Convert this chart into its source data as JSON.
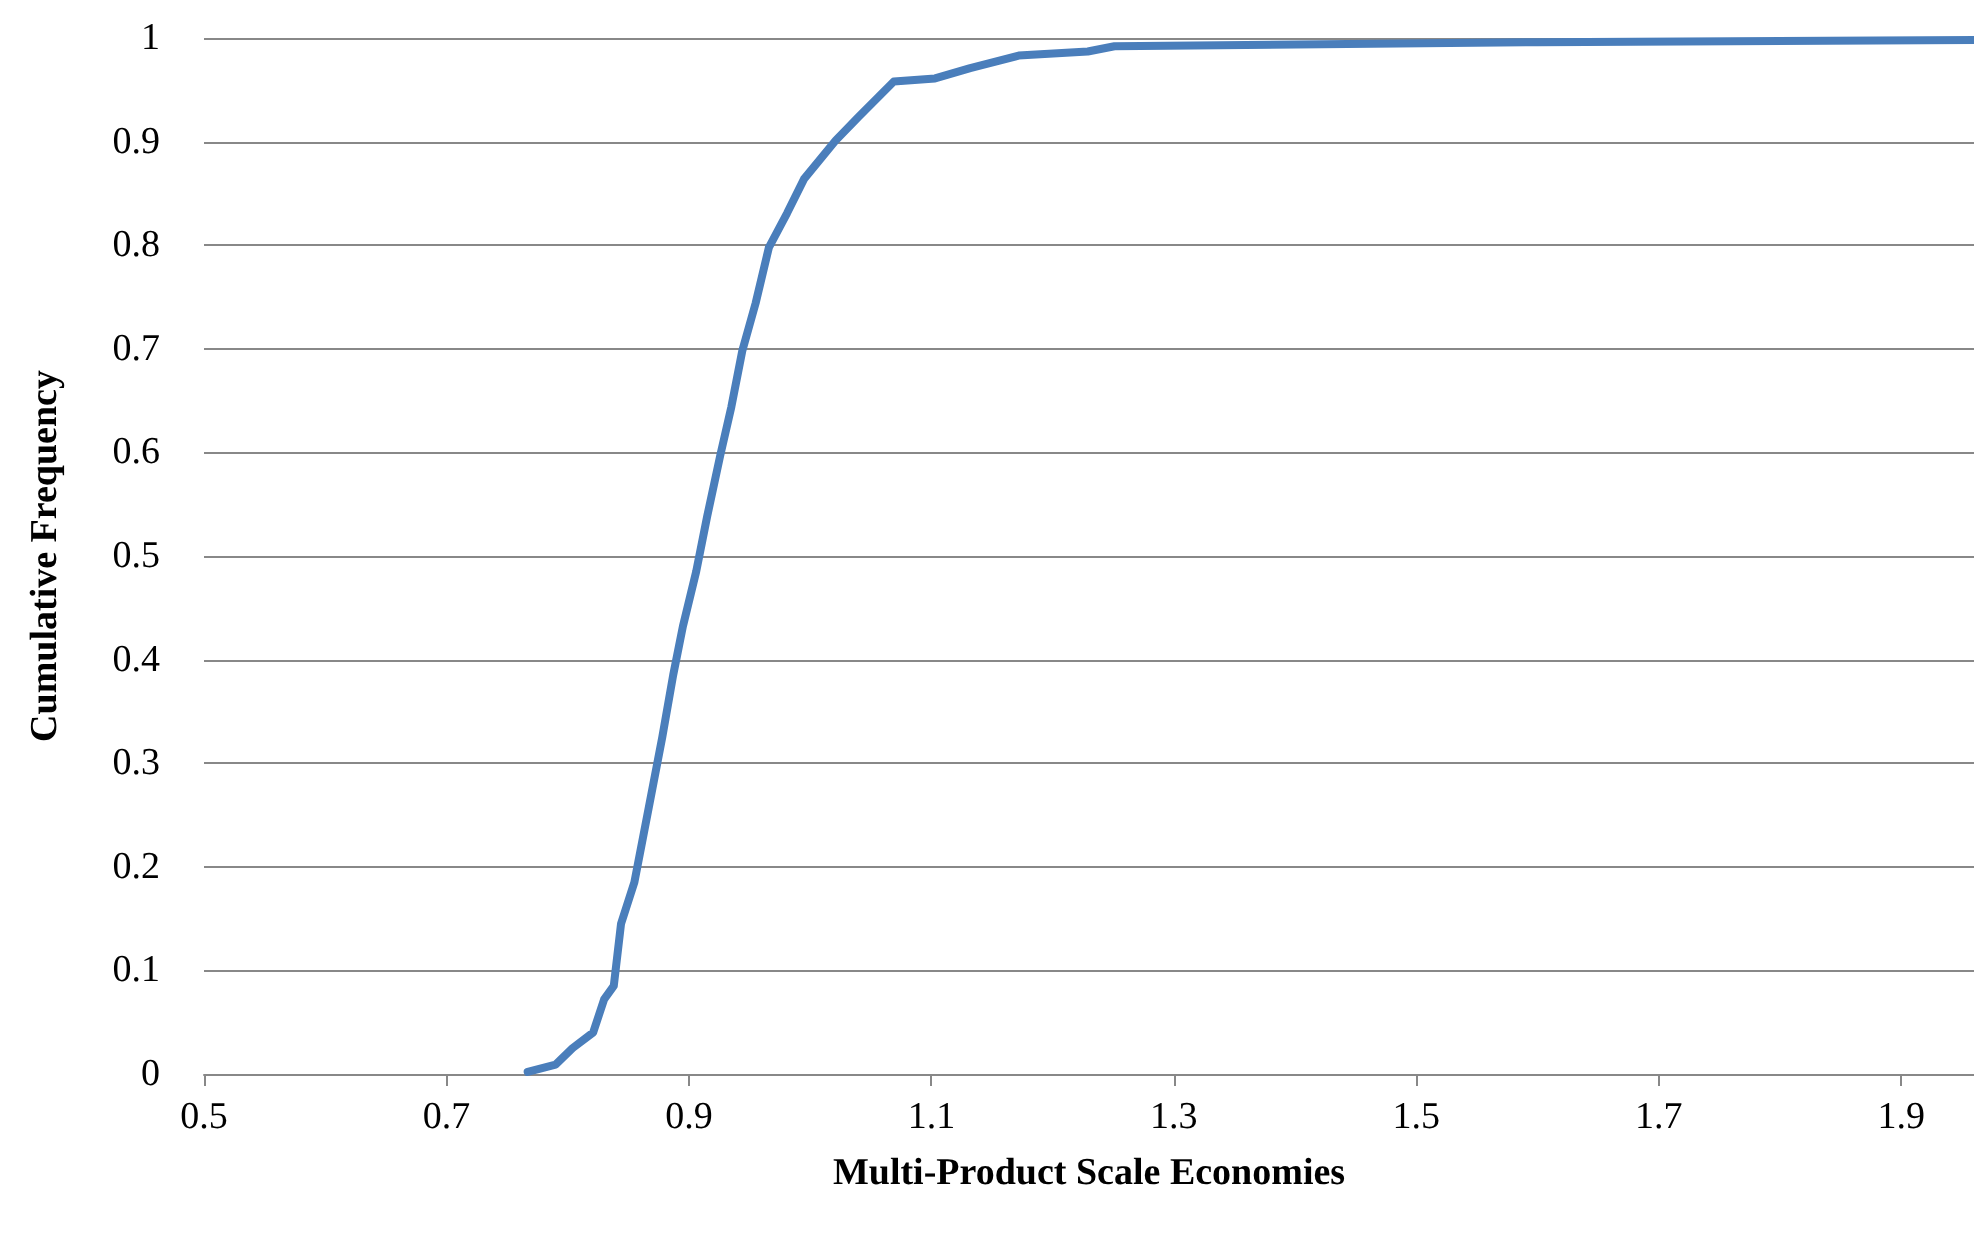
{
  "chart_data": {
    "type": "line",
    "xlabel": "Multi-Product Scale Economies",
    "ylabel": "Cumulative Frequency",
    "series": [
      {
        "color": "#4a7ebb",
        "x": [
          0.767,
          0.79,
          0.804,
          0.821,
          0.83,
          0.838,
          0.844,
          0.855,
          0.867,
          0.878,
          0.887,
          0.895,
          0.906,
          0.915,
          0.926,
          0.935,
          0.944,
          0.955,
          0.966,
          0.981,
          0.995,
          1.021,
          1.04,
          1.069,
          1.103,
          1.132,
          1.172,
          1.229,
          1.251,
          1.422,
          1.6,
          1.96
        ],
        "values": [
          0.002,
          0.009,
          0.025,
          0.04,
          0.072,
          0.085,
          0.145,
          0.185,
          0.258,
          0.325,
          0.385,
          0.432,
          0.485,
          0.538,
          0.598,
          0.644,
          0.698,
          0.744,
          0.798,
          0.831,
          0.864,
          0.901,
          0.924,
          0.958,
          0.961,
          0.971,
          0.983,
          0.987,
          0.992,
          0.994,
          0.996,
          0.998
        ]
      }
    ],
    "xlim": [
      0.5,
      1.96
    ],
    "xticks": [
      0.5,
      0.7,
      0.9,
      1.1,
      1.3,
      1.5,
      1.7,
      1.9
    ],
    "ylim": [
      0,
      1
    ],
    "yticks": [
      0,
      0.1,
      0.2,
      0.3,
      0.4,
      0.5,
      0.6,
      0.7,
      0.8,
      0.9,
      1
    ],
    "grid": "y",
    "marker": "none",
    "line_style": "solid"
  }
}
